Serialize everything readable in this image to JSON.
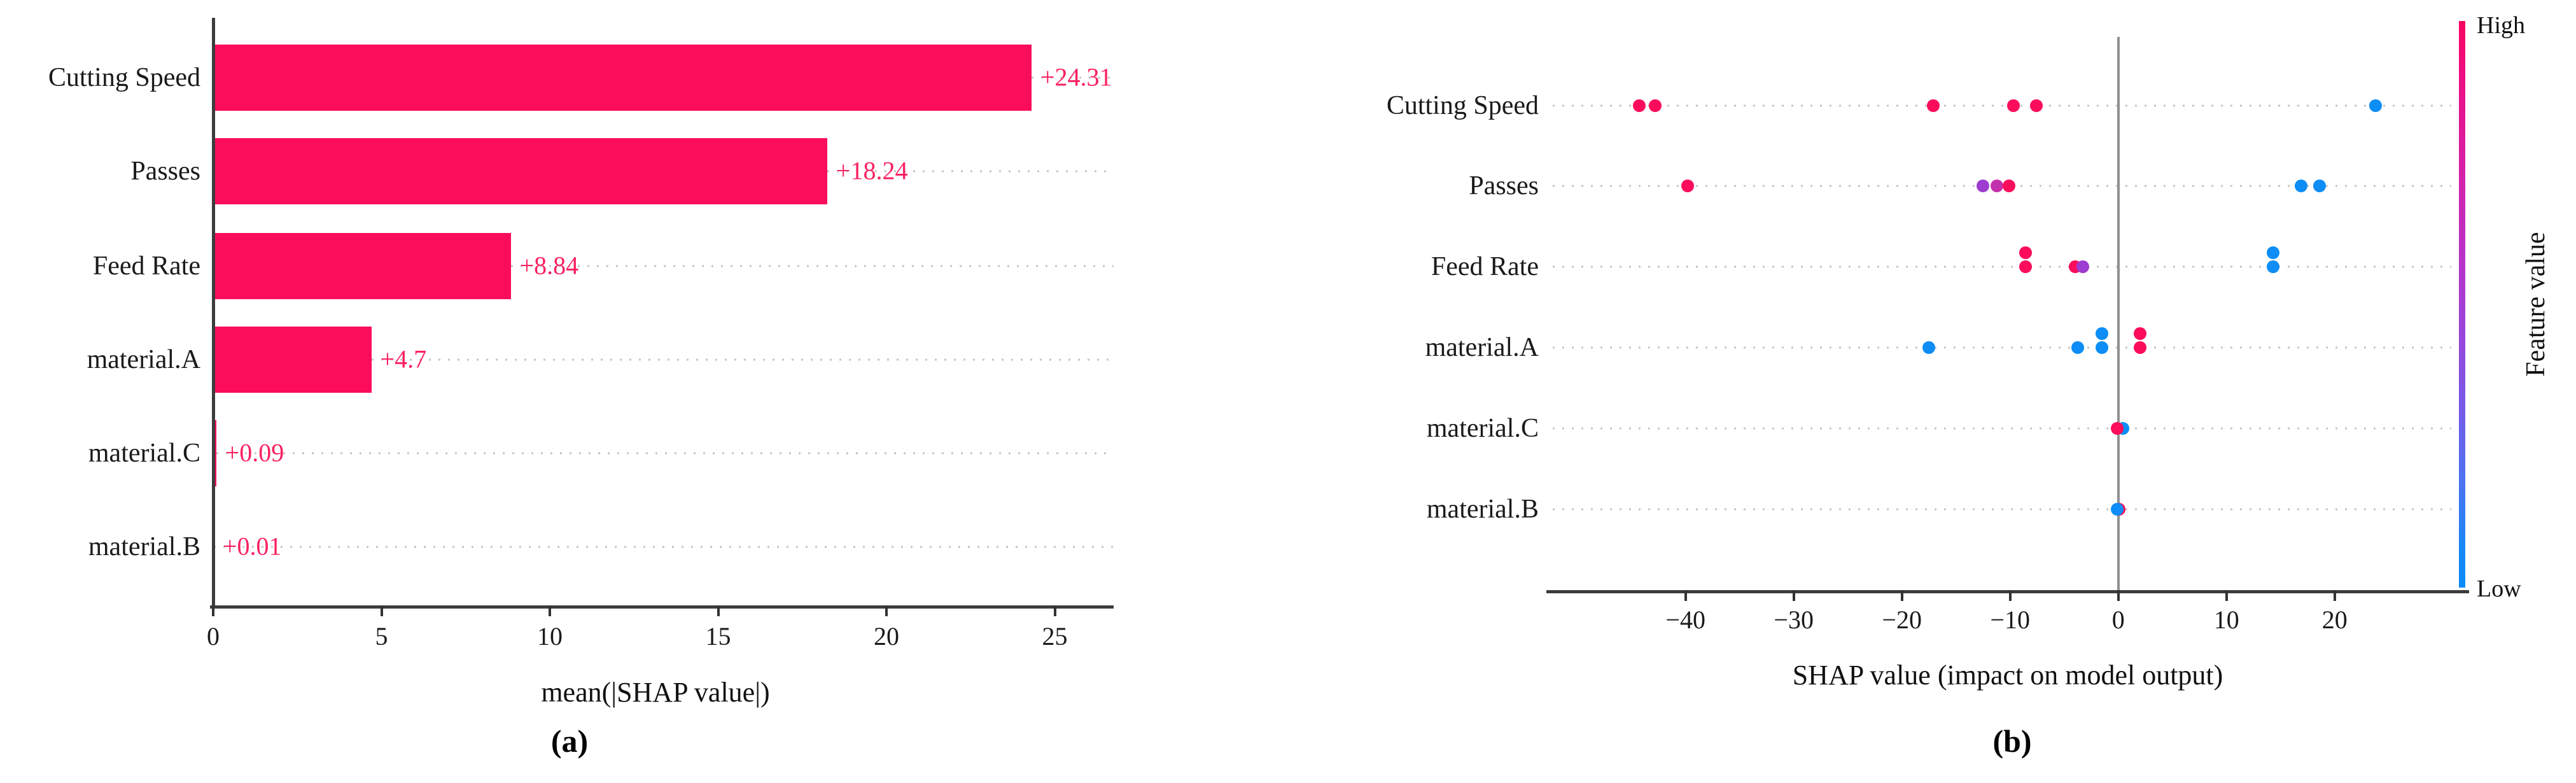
{
  "figure": {
    "background": "#ffffff"
  },
  "colors": {
    "bar": "#fb0d5b",
    "value_label": "#fb2060",
    "dot_high": "#fb0d5b",
    "dot_low": "#0d8df5",
    "dot_mid_purple": "#9d3cd0",
    "dot_mid_magenta": "#c330ab",
    "axis": "#3c3c3c",
    "zero_line": "#909090",
    "grid_dotted": "#c4c4c4"
  },
  "chart_data": [
    {
      "id": "a",
      "type": "bar",
      "orientation": "horizontal",
      "caption": "(a)",
      "xlabel": "mean(|SHAP value|)",
      "categories": [
        "Cutting Speed",
        "Passes",
        "Feed Rate",
        "material.A",
        "material.C",
        "material.B"
      ],
      "values": [
        24.31,
        18.24,
        8.84,
        4.7,
        0.09,
        0.01
      ],
      "value_labels": [
        "+24.31",
        "+18.24",
        "+8.84",
        "+4.7",
        "+0.09",
        "+0.01"
      ],
      "xticks": [
        0,
        5,
        10,
        15,
        20,
        25
      ],
      "xtick_labels": [
        "0",
        "5",
        "10",
        "15",
        "20",
        "25"
      ],
      "xlim": [
        0,
        26.7
      ],
      "grid": "dotted horizontal leaders",
      "legend": "none",
      "bar_color": "#fb0d5b"
    },
    {
      "id": "b",
      "type": "scatter",
      "subtype": "shap-beeswarm",
      "caption": "(b)",
      "xlabel": "SHAP value (impact on model output)",
      "categories": [
        "Cutting Speed",
        "Passes",
        "Feed Rate",
        "material.A",
        "material.C",
        "material.B"
      ],
      "xticks": [
        -40,
        -30,
        -20,
        -10,
        0,
        10,
        20
      ],
      "xtick_labels": [
        "−40",
        "−30",
        "−20",
        "−10",
        "0",
        "10",
        "20"
      ],
      "xlim": [
        -52.9,
        32.4
      ],
      "zero_reference_line": 0,
      "grid": "dotted horizontal rows",
      "colorbar": {
        "high_label": "High",
        "low_label": "Low",
        "title": "Feature value"
      },
      "series": [
        {
          "feature": "Cutting Speed",
          "points": [
            {
              "x": -44.3,
              "c": "high",
              "dy": 0
            },
            {
              "x": -42.8,
              "c": "high",
              "dy": 0
            },
            {
              "x": -17.1,
              "c": "high",
              "dy": 0
            },
            {
              "x": -9.7,
              "c": "high",
              "dy": 0
            },
            {
              "x": -7.6,
              "c": "high",
              "dy": 0
            },
            {
              "x": 23.8,
              "c": "low",
              "dy": 0
            }
          ]
        },
        {
          "feature": "Passes",
          "points": [
            {
              "x": -39.8,
              "c": "high",
              "dy": 0
            },
            {
              "x": -12.5,
              "c": "mid",
              "dy": 0
            },
            {
              "x": -11.2,
              "c": "mid2",
              "dy": 0
            },
            {
              "x": -10.1,
              "c": "high",
              "dy": 0
            },
            {
              "x": 16.9,
              "c": "low",
              "dy": 0
            },
            {
              "x": 18.6,
              "c": "low",
              "dy": 0
            }
          ]
        },
        {
          "feature": "Feed Rate",
          "points": [
            {
              "x": -8.6,
              "c": "high",
              "dy": -22
            },
            {
              "x": -8.6,
              "c": "high",
              "dy": 0
            },
            {
              "x": -4.0,
              "c": "high",
              "dy": 0
            },
            {
              "x": -3.3,
              "c": "mid",
              "dy": 0
            },
            {
              "x": 14.3,
              "c": "low",
              "dy": -22
            },
            {
              "x": 14.3,
              "c": "low",
              "dy": 0
            }
          ]
        },
        {
          "feature": "material.A",
          "points": [
            {
              "x": -17.5,
              "c": "low",
              "dy": 0
            },
            {
              "x": -3.75,
              "c": "low",
              "dy": 0
            },
            {
              "x": -1.5,
              "c": "low",
              "dy": -22
            },
            {
              "x": -1.5,
              "c": "low",
              "dy": 0
            },
            {
              "x": 2.0,
              "c": "high",
              "dy": -22
            },
            {
              "x": 2.0,
              "c": "high",
              "dy": 0
            }
          ]
        },
        {
          "feature": "material.C",
          "points": [
            {
              "x": 0.4,
              "c": "low",
              "dy": 0
            },
            {
              "x": -0.1,
              "c": "high",
              "dy": 0
            }
          ]
        },
        {
          "feature": "material.B",
          "points": [
            {
              "x": 0.1,
              "c": "high",
              "dy": 0
            },
            {
              "x": -0.1,
              "c": "low",
              "dy": 0
            }
          ]
        }
      ]
    }
  ]
}
